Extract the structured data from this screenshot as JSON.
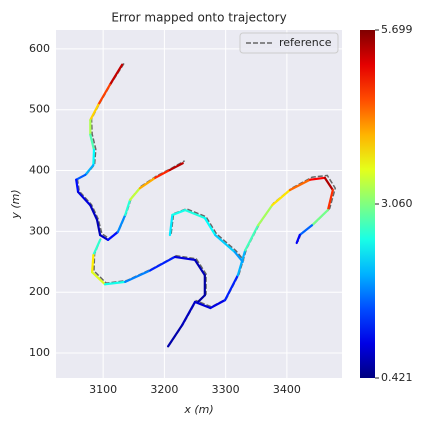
{
  "chart_data": {
    "type": "trajectory",
    "title": "Error mapped onto trajectory",
    "x_label": "x (m)",
    "y_label": "y (m)",
    "xlim": [
      3023,
      3490
    ],
    "xticks": [
      3100,
      3200,
      3300,
      3400
    ],
    "ylim": [
      59,
      631
    ],
    "yticks": [
      100,
      200,
      300,
      400,
      500,
      600
    ],
    "grid": true,
    "legend": "upper right",
    "clim": [
      0.421,
      5.699
    ],
    "cticks": [
      0.421,
      {
        "value": 3.06,
        "label": "3.060"
      },
      5.699
    ],
    "colormap": "jet",
    "x": [
      3131,
      3111,
      3092,
      3079,
      3079,
      3085,
      3084,
      3071,
      3056,
      3059,
      3079,
      3090,
      3095,
      3108,
      3124,
      3136,
      3144,
      3160,
      3185,
      3209,
      3230,
      null,
      3095,
      3084,
      3082,
      3103,
      3136,
      3177,
      3217,
      3250,
      3266,
      3266,
      3255,
      null,
      3206,
      3229,
      3250,
      3275,
      3299,
      3320,
      3332,
      3353,
      3376,
      3405,
      3438,
      3462,
      3475,
      3467,
      3441,
      3421,
      3416,
      null,
      3209,
      3213,
      3234,
      3266,
      3283,
      3315,
      3328
    ],
    "y": [
      574,
      541,
      508,
      483,
      459,
      434,
      409,
      393,
      385,
      365,
      343,
      319,
      294,
      286,
      299,
      327,
      352,
      371,
      388,
      401,
      412,
      null,
      286,
      261,
      233,
      213,
      217,
      236,
      258,
      253,
      228,
      195,
      184,
      null,
      111,
      146,
      184,
      174,
      187,
      228,
      269,
      310,
      343,
      368,
      385,
      388,
      368,
      335,
      310,
      294,
      281,
      null,
      294,
      327,
      335,
      322,
      294,
      266,
      250
    ],
    "error": [
      5.6,
      5.1,
      4.3,
      3.6,
      3.0,
      2.6,
      2.2,
      1.8,
      1.3,
      1.0,
      0.8,
      0.7,
      0.7,
      0.9,
      1.4,
      2.2,
      3.0,
      3.8,
      4.5,
      5.2,
      5.6,
      null,
      1.8,
      3.5,
      4.1,
      3.0,
      2.0,
      1.5,
      1.0,
      0.8,
      0.6,
      0.6,
      0.6,
      null,
      0.6,
      0.7,
      0.8,
      0.9,
      1.0,
      1.5,
      2.5,
      3.0,
      3.5,
      4.2,
      4.8,
      5.3,
      5.6,
      4.0,
      2.0,
      1.2,
      0.9,
      null,
      2.2,
      2.4,
      2.6,
      2.5,
      2.3,
      2.0,
      1.8
    ],
    "reference": {
      "name": "reference",
      "color": "#666666",
      "x": [
        3134,
        3113,
        3094,
        3081,
        3082,
        3088,
        3086,
        3073,
        3058,
        3061,
        3081,
        3092,
        3098,
        3110,
        3126,
        3138,
        3146,
        3162,
        3187,
        3212,
        3233,
        null,
        3096,
        3086,
        3085,
        3105,
        3138,
        3179,
        3219,
        3252,
        3268,
        3268,
        3257,
        null,
        3208,
        3231,
        3252,
        3277,
        3301,
        3322,
        3334,
        3355,
        3378,
        3408,
        3441,
        3466,
        3479,
        3470,
        3444,
        3423,
        3418,
        null,
        3211,
        3215,
        3236,
        3268,
        3285,
        3317,
        3330
      ],
      "y": [
        576,
        543,
        510,
        485,
        460,
        435,
        410,
        394,
        386,
        366,
        344,
        320,
        296,
        288,
        302,
        330,
        355,
        374,
        391,
        404,
        416,
        null,
        288,
        263,
        235,
        215,
        219,
        238,
        260,
        255,
        230,
        197,
        186,
        null,
        113,
        148,
        186,
        176,
        189,
        230,
        271,
        312,
        346,
        371,
        389,
        392,
        371,
        338,
        312,
        296,
        283,
        null,
        296,
        329,
        337,
        324,
        296,
        268,
        252
      ]
    }
  }
}
